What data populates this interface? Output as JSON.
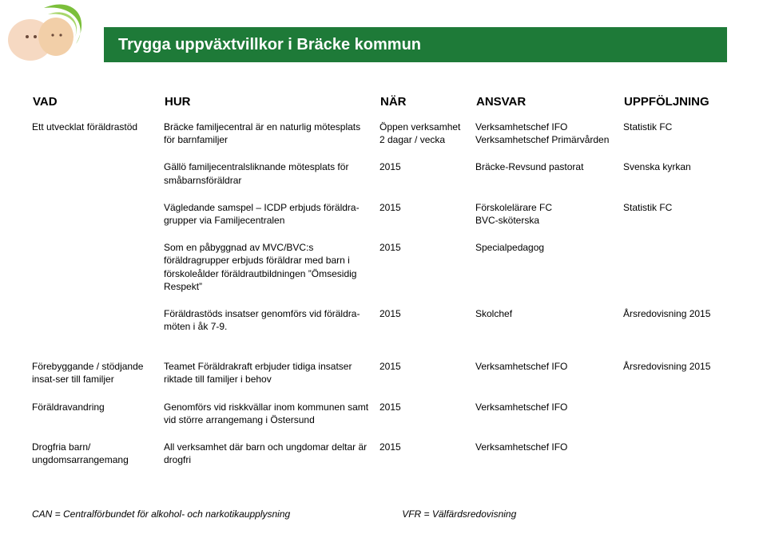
{
  "banner": {
    "title": "Trygga uppväxtvillkor i Bräcke kommun",
    "bg_color": "#1e7a38",
    "text_color": "#ffffff"
  },
  "columns": {
    "vad": "VAD",
    "hur": "HUR",
    "nar": "NÄR",
    "ansvar": "ANSVAR",
    "uppfoljning": "UPPFÖLJNING"
  },
  "rows": [
    {
      "vad": "Ett utvecklat föräldrastöd",
      "hur": "Bräcke familjecentral är en naturlig mötesplats för barnfamiljer",
      "nar": "Öppen verksamhet\n2 dagar / vecka",
      "ansvar": "Verksamhetschef IFO\nVerksamhetschef Primärvården",
      "upp": "Statistik FC"
    },
    {
      "vad": "",
      "hur": "Gällö familjecentralsliknande mötesplats för småbarnsföräldrar",
      "nar": "2015",
      "ansvar": "Bräcke-Revsund pastorat",
      "upp": "Svenska kyrkan"
    },
    {
      "vad": "",
      "hur": "Vägledande samspel – ICDP erbjuds föräldra-grupper via Familjecentralen",
      "nar": "2015",
      "ansvar": "Förskolelärare FC\nBVC-sköterska",
      "upp": "Statistik FC"
    },
    {
      "vad": "",
      "hur": "Som en påbyggnad av MVC/BVC:s föräldragrupper erbjuds föräldrar med barn i förskoleålder föräldrautbildningen ”Ömsesidig Respekt”",
      "nar": "2015",
      "ansvar": "Specialpedagog",
      "upp": ""
    },
    {
      "vad": "",
      "hur": "Föräldrastöds insatser genomförs vid föräldra-möten i åk 7-9.",
      "nar": "2015",
      "ansvar": "Skolchef",
      "upp": "Årsredovisning 2015"
    },
    {
      "vad": "Förebyggande / stödjande insat-ser till familjer",
      "hur": "Teamet Föräldrakraft erbjuder tidiga insatser riktade till familjer i behov",
      "nar": "2015",
      "ansvar": "Verksamhetschef IFO",
      "upp": "Årsredovisning 2015"
    },
    {
      "vad": "Föräldravandring",
      "hur": "Genomförs vid riskkvällar inom kommunen samt vid större arrangemang i Östersund",
      "nar": "2015",
      "ansvar": "Verksamhetschef IFO",
      "upp": ""
    },
    {
      "vad": "Drogfria barn/\nungdomsarrangemang",
      "hur": "All verksamhet där barn och ungdomar deltar är drogfri",
      "nar": "2015",
      "ansvar": "Verksamhetschef IFO",
      "upp": ""
    }
  ],
  "groupBreakBefore": [
    5
  ],
  "footnotes": {
    "left": "CAN = Centralförbundet för alkohol- och narkotikaupplysning",
    "right": "VFR = Välfärdsredovisning"
  }
}
